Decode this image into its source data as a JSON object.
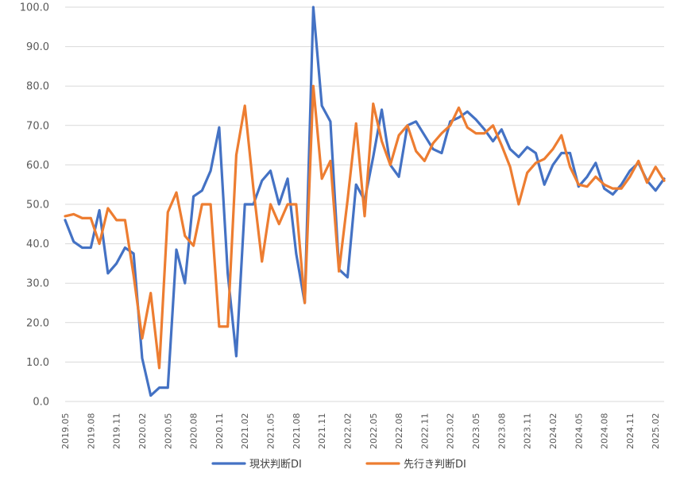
{
  "chart_data": {
    "type": "line",
    "title": "",
    "xlabel": "",
    "ylabel": "",
    "ylim": [
      0,
      100
    ],
    "yticks": [
      "0.0",
      "10.0",
      "20.0",
      "30.0",
      "40.0",
      "50.0",
      "60.0",
      "70.0",
      "80.0",
      "90.0",
      "100.0"
    ],
    "grid": true,
    "legend_position": "bottom",
    "x": [
      "2019.05",
      "2019.06",
      "2019.07",
      "2019.08",
      "2019.09",
      "2019.10",
      "2019.11",
      "2019.12",
      "2020.01",
      "2020.02",
      "2020.03",
      "2020.04",
      "2020.05",
      "2020.06",
      "2020.07",
      "2020.08",
      "2020.09",
      "2020.10",
      "2020.11",
      "2020.12",
      "2021.01",
      "2021.02",
      "2021.03",
      "2021.04",
      "2021.05",
      "2021.06",
      "2021.07",
      "2021.08",
      "2021.09",
      "2021.10",
      "2021.11",
      "2021.12",
      "2022.01",
      "2022.02",
      "2022.03",
      "2022.04",
      "2022.05",
      "2022.06",
      "2022.07",
      "2022.08",
      "2022.09",
      "2022.10",
      "2022.11",
      "2022.12",
      "2023.01",
      "2023.02",
      "2023.03",
      "2023.04",
      "2023.05",
      "2023.06",
      "2023.07",
      "2023.08",
      "2023.09",
      "2023.10",
      "2023.11",
      "2023.12",
      "2024.01",
      "2024.02",
      "2024.03",
      "2024.04",
      "2024.05",
      "2024.06",
      "2024.07",
      "2024.08",
      "2024.09",
      "2024.10",
      "2024.11",
      "2024.12",
      "2025.01",
      "2025.02",
      "2025.03"
    ],
    "xtick_labels": [
      "2019.05",
      "2019.08",
      "2019.11",
      "2020.02",
      "2020.05",
      "2020.08",
      "2020.11",
      "2021.02",
      "2021.05",
      "2021.08",
      "2021.11",
      "2022.02",
      "2022.05",
      "2022.08",
      "2022.11",
      "2023.02",
      "2023.05",
      "2023.08",
      "2023.11",
      "2024.02",
      "2024.05",
      "2024.08",
      "2024.11",
      "2025.02"
    ],
    "series": [
      {
        "name": "現状判断DI",
        "color": "#4472c4",
        "values": [
          46.0,
          40.5,
          39.0,
          39.0,
          48.5,
          32.5,
          35.0,
          39.0,
          37.5,
          11.0,
          1.5,
          3.5,
          3.5,
          38.5,
          30.0,
          52.0,
          53.5,
          58.5,
          69.5,
          32.5,
          11.5,
          50.0,
          50.0,
          56.0,
          58.5,
          50.0,
          56.5,
          37.5,
          25.0,
          100.0,
          75.0,
          71.0,
          33.5,
          31.5,
          55.0,
          51.0,
          62.0,
          74.0,
          60.0,
          57.0,
          70.0,
          71.0,
          67.5,
          64.0,
          63.0,
          71.0,
          72.0,
          73.5,
          71.5,
          69.0,
          66.0,
          69.0,
          64.0,
          62.0,
          64.5,
          63.0,
          55.0,
          60.0,
          63.0,
          63.0,
          54.5,
          57.0,
          60.5,
          54.0,
          52.5,
          55.0,
          58.5,
          60.5,
          56.0,
          53.5,
          56.5
        ]
      },
      {
        "name": "先行き判断DI",
        "color": "#ed7d31",
        "values": [
          47.0,
          47.5,
          46.5,
          46.5,
          40.0,
          49.0,
          46.0,
          46.0,
          32.0,
          16.0,
          27.5,
          8.5,
          48.0,
          53.0,
          42.0,
          39.5,
          50.0,
          50.0,
          19.0,
          19.0,
          62.5,
          75.0,
          54.0,
          35.5,
          50.0,
          45.0,
          50.0,
          50.0,
          25.0,
          80.0,
          56.5,
          61.0,
          33.0,
          51.0,
          70.5,
          47.0,
          75.5,
          66.0,
          60.0,
          67.5,
          70.0,
          63.5,
          61.0,
          65.5,
          68.0,
          70.0,
          74.5,
          69.5,
          68.0,
          68.0,
          70.0,
          65.0,
          59.5,
          50.0,
          58.0,
          60.5,
          61.5,
          64.0,
          67.5,
          59.5,
          55.0,
          54.5,
          57.0,
          55.0,
          54.0,
          54.0,
          57.0,
          61.0,
          55.5,
          59.5,
          56.0
        ]
      }
    ]
  }
}
